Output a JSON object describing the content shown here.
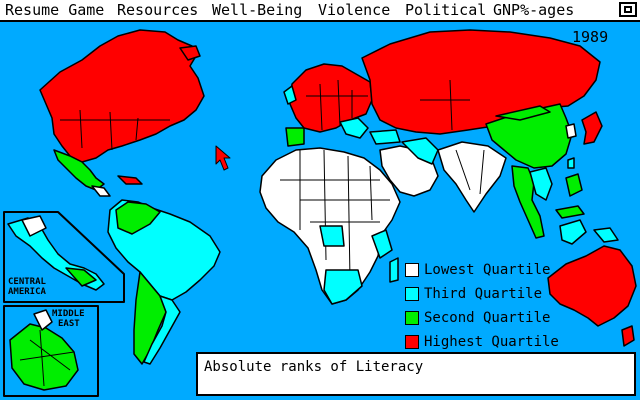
{
  "menu": {
    "items": [
      {
        "id": "resume-game",
        "label": "Resume Game"
      },
      {
        "id": "resources",
        "label": "Resources"
      },
      {
        "id": "well-being",
        "label": "Well-Being"
      },
      {
        "id": "violence",
        "label": "Violence"
      },
      {
        "id": "political",
        "label": "Political"
      },
      {
        "id": "gnp-ages",
        "label": "GNP%-ages"
      }
    ]
  },
  "map": {
    "year": "1989",
    "insets": {
      "central_america": "CENTRAL\nAMERICA",
      "middle_east": "MIDDLE\nEAST"
    }
  },
  "legend": {
    "items": [
      {
        "label": "Lowest Quartile",
        "color": "#ffffff"
      },
      {
        "label": "Third Quartile",
        "color": "#00ffff"
      },
      {
        "label": "Second Quartile",
        "color": "#00ee00"
      },
      {
        "label": "Highest Quartile",
        "color": "#ff0000"
      }
    ]
  },
  "caption": {
    "text": "Absolute ranks of Literacy"
  },
  "colors": {
    "ocean": "#00aaff",
    "lowest": "#ffffff",
    "third": "#00ffff",
    "second": "#00ee00",
    "highest": "#ff0000"
  }
}
